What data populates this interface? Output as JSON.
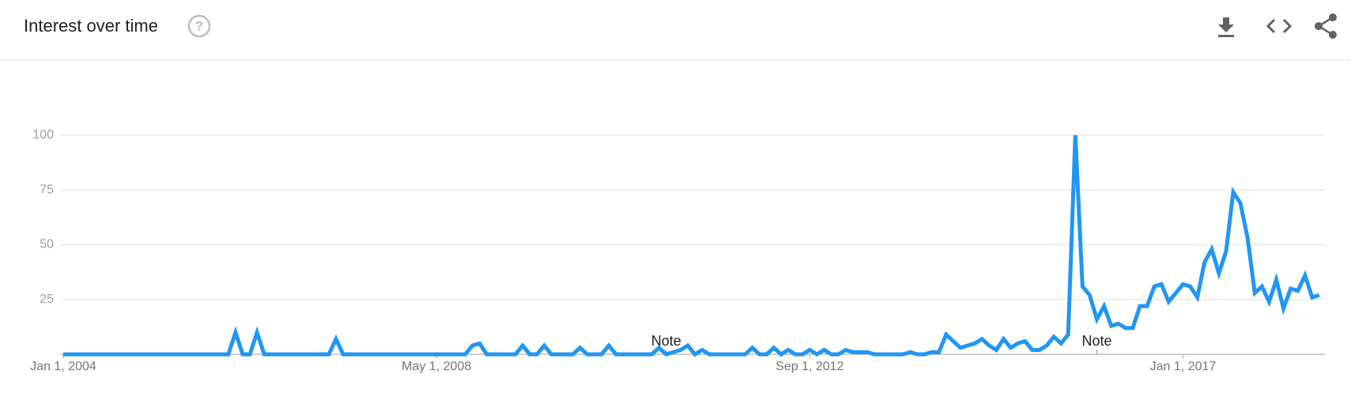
{
  "chart_data": {
    "type": "line",
    "title": "Interest over time",
    "values": [
      0,
      0,
      0,
      0,
      0,
      0,
      0,
      0,
      0,
      0,
      0,
      0,
      0,
      0,
      0,
      0,
      0,
      0,
      0,
      0,
      0,
      0,
      0,
      0,
      10,
      0,
      0,
      10,
      0,
      0,
      0,
      0,
      0,
      0,
      0,
      0,
      0,
      0,
      7,
      0,
      0,
      0,
      0,
      0,
      0,
      0,
      0,
      0,
      0,
      0,
      0,
      0,
      0,
      0,
      0,
      0,
      0,
      4,
      5,
      0,
      0,
      0,
      0,
      0,
      4,
      0,
      0,
      4,
      0,
      0,
      0,
      0,
      3,
      0,
      0,
      0,
      4,
      0,
      0,
      0,
      0,
      0,
      0,
      3,
      0,
      1,
      2,
      4,
      0,
      2,
      0,
      0,
      0,
      0,
      0,
      0,
      3,
      0,
      0,
      3,
      0,
      2,
      0,
      0,
      2,
      0,
      2,
      0,
      0,
      2,
      1,
      1,
      1,
      0,
      0,
      0,
      0,
      0,
      1,
      0,
      0,
      1,
      1,
      9,
      6,
      3,
      4,
      5,
      7,
      4,
      2,
      7,
      3,
      5,
      6,
      2,
      2,
      4,
      8,
      5,
      9,
      100,
      31,
      27,
      16,
      22,
      13,
      14,
      12,
      12,
      22,
      22,
      31,
      32,
      24,
      28,
      32,
      31,
      26,
      42,
      48,
      37,
      47,
      74,
      69,
      53,
      28,
      31,
      24,
      34,
      21,
      30,
      29,
      36,
      26,
      27
    ],
    "color": "#2196f3",
    "xlim": [
      0,
      175
    ],
    "xticks": [
      {
        "value": 0,
        "label": "Jan 1, 2004"
      },
      {
        "value": 52,
        "label": "May 1, 2008"
      },
      {
        "value": 104,
        "label": "Sep 1, 2012"
      },
      {
        "value": 156,
        "label": "Jan 1, 2017"
      }
    ],
    "ylim": [
      0,
      100
    ],
    "yticks": [
      25,
      50,
      75,
      100
    ],
    "grid": true,
    "annotations": [
      {
        "x": 84,
        "label": "Note"
      },
      {
        "x": 144,
        "label": "Note"
      }
    ]
  }
}
